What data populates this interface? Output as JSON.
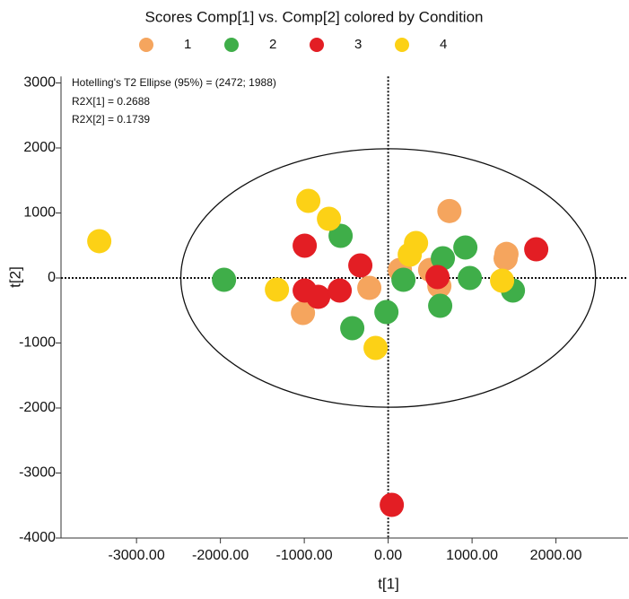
{
  "chart_data": {
    "type": "scatter",
    "title": "Scores Comp[1] vs. Comp[2] colored by Condition",
    "x_label": "t[1]",
    "y_label": "t[2]",
    "annotations": [
      "Hotelling's T2 Ellipse (95%) = (2472; 1988)",
      "R2X[1] = 0.2688",
      "R2X[2] = 0.1739"
    ],
    "ellipse": [
      2472,
      1988
    ],
    "xlim": [
      -3900,
      2860
    ],
    "ylim": [
      -4000,
      3100
    ],
    "xticks": [
      {
        "value": -3000,
        "label": "-3000.00"
      },
      {
        "value": -2000,
        "label": "-2000.00"
      },
      {
        "value": -1000,
        "label": "-1000.00"
      },
      {
        "value": 0,
        "label": "0.00"
      },
      {
        "value": 1000,
        "label": "1000.00"
      },
      {
        "value": 2000,
        "label": "2000.00"
      }
    ],
    "yticks": [
      -4000,
      -3000,
      -2000,
      -1000,
      0,
      1000,
      2000,
      3000
    ],
    "series": [
      {
        "name": "1",
        "color": "#f5a55e",
        "x": [
          730,
          -1016,
          -225,
          1410,
          1400,
          140,
          610,
          500
        ],
        "y": [
          1030,
          -538,
          -152,
          370,
          300,
          124,
          -124,
          124
        ]
      },
      {
        "name": "2",
        "color": "#3fae49",
        "x": [
          -1957,
          -567,
          -428,
          -21,
          182,
          652,
          620,
          920,
          973,
          1487
        ],
        "y": [
          -28,
          648,
          -772,
          -524,
          -28,
          303,
          -428,
          469,
          0,
          -193
        ]
      },
      {
        "name": "3",
        "color": "#e31e24",
        "x": [
          -995,
          -995,
          -834,
          -578,
          -332,
          588,
          1765,
          43
        ],
        "y": [
          497,
          -193,
          -290,
          -193,
          193,
          14,
          441,
          -3490
        ]
      },
      {
        "name": "4",
        "color": "#fcd116",
        "x": [
          -3444,
          -952,
          -706,
          -1326,
          -150,
          332,
          257,
          1358
        ],
        "y": [
          566,
          1186,
          910,
          -179,
          -1076,
          538,
          359,
          -41
        ]
      }
    ]
  }
}
